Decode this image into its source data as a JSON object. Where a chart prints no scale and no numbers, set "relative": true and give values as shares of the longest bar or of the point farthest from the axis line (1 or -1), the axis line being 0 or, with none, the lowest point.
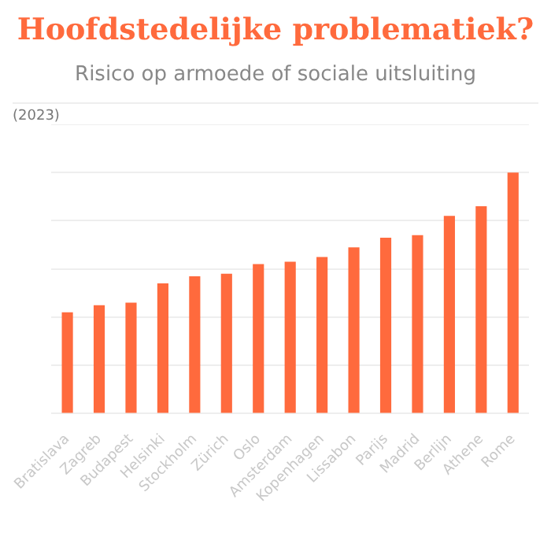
{
  "chart_data": {
    "type": "bar",
    "title": "Hoofdstedelijke problematiek?",
    "subtitle": "Risico op armoede of sociale uitsluiting",
    "annotations": [
      "(2023)"
    ],
    "categories": [
      "Bratislava",
      "Zagreb",
      "Budapest",
      "Helsinki",
      "Stockholm",
      "Zürich",
      "Oslo",
      "Amsterdam",
      "Kopenhagen",
      "Lissabon",
      "Parijs",
      "Madrid",
      "Berlijn",
      "Athene",
      "Rome"
    ],
    "values": [
      0.42,
      0.45,
      0.46,
      0.54,
      0.57,
      0.58,
      0.62,
      0.63,
      0.65,
      0.69,
      0.73,
      0.74,
      0.82,
      0.86,
      1
    ],
    "color": "#ff6a3d",
    "relative": true,
    "grid": "y",
    "legend": false
  }
}
